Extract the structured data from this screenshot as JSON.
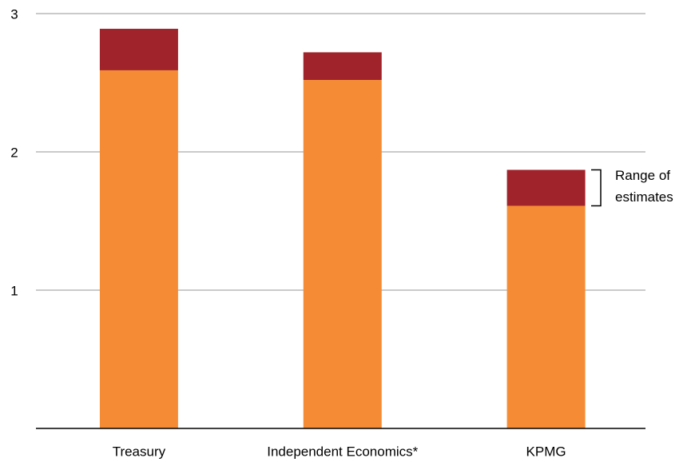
{
  "chart_data": {
    "type": "bar",
    "stacked": true,
    "categories": [
      "Treasury",
      "Independent Economics*",
      "KPMG"
    ],
    "series": [
      {
        "color": "#f58c35",
        "values": [
          2.59,
          2.52,
          1.61
        ]
      },
      {
        "color": "#a0222a",
        "values": [
          0.3,
          0.2,
          0.26
        ]
      }
    ],
    "ylim": [
      0,
      3
    ],
    "yticks": [
      1,
      2,
      3
    ],
    "grid": true,
    "annotation": [
      "Range of",
      "estimates"
    ]
  }
}
